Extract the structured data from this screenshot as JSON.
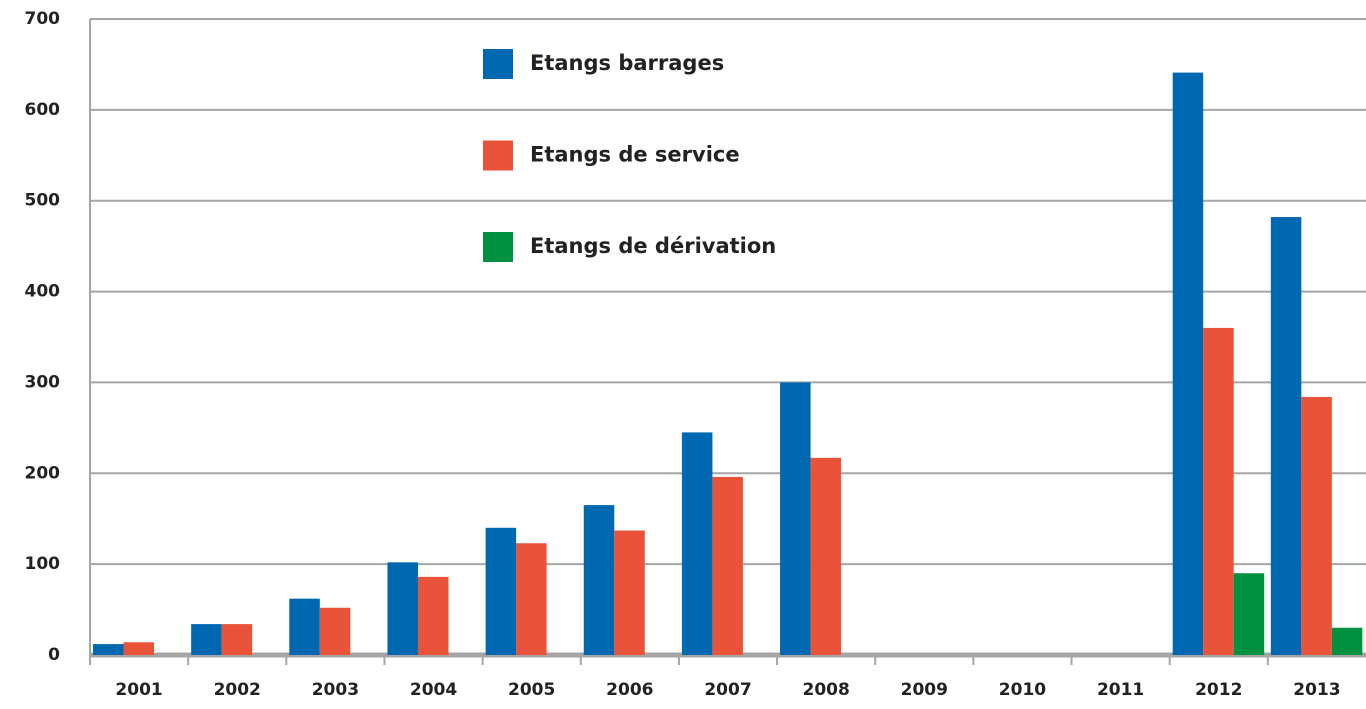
{
  "chart_data": {
    "type": "bar",
    "categories": [
      "2001",
      "2002",
      "2003",
      "2004",
      "2005",
      "2006",
      "2007",
      "2008",
      "2009",
      "2010",
      "2011",
      "2012",
      "2013"
    ],
    "series": [
      {
        "name": "Etangs barrages",
        "color": "#0067b1",
        "values": [
          12,
          34,
          62,
          102,
          140,
          165,
          245,
          300,
          null,
          null,
          null,
          641,
          482
        ]
      },
      {
        "name": "Etangs de service",
        "color": "#e8533a",
        "values": [
          14,
          34,
          52,
          86,
          123,
          137,
          196,
          217,
          null,
          null,
          null,
          360,
          284
        ]
      },
      {
        "name": "Etangs de dérivation",
        "color": "#009140",
        "values": [
          null,
          null,
          null,
          null,
          null,
          null,
          null,
          null,
          null,
          null,
          null,
          90,
          30
        ]
      }
    ],
    "ylim": [
      0,
      700
    ],
    "yticks": [
      0,
      100,
      200,
      300,
      400,
      500,
      600,
      700
    ],
    "grid": true,
    "legend": "top"
  }
}
